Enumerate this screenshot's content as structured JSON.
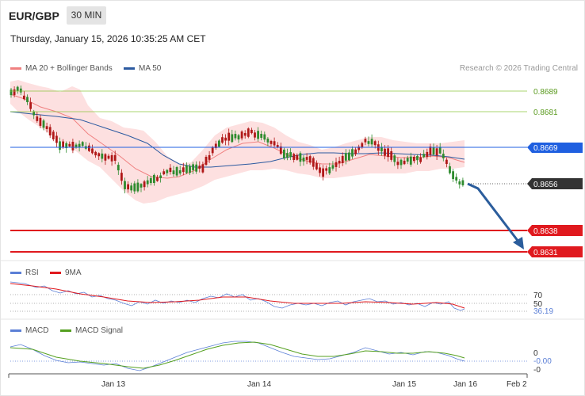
{
  "header": {
    "pair": "EUR/GBP",
    "timeframe": "30 MIN",
    "datetime": "Thursday, January 15, 2026 10:35:25 AM CET"
  },
  "price_panel": {
    "legend": [
      {
        "label": "MA 20 + Bollinger Bands",
        "color": "#f08080"
      },
      {
        "label": "MA 50",
        "color": "#2c5aa0"
      }
    ],
    "copyright": "Research © 2026 Trading Central",
    "levels": {
      "r2": "0.8689",
      "r1": "0.8681",
      "pivot": "0.8669",
      "last": "0.8656",
      "s1": "0.8638",
      "s2": "0.8631"
    },
    "colors": {
      "resistance": "#8cc63f",
      "pivot": "#1f5fe0",
      "support": "#e0191e",
      "last": "#333333",
      "arrow": "#2b5d9c"
    }
  },
  "rsi_panel": {
    "legend": [
      {
        "label": "RSI",
        "color": "#5b7fd6"
      },
      {
        "label": "9MA",
        "color": "#e0191e"
      }
    ],
    "levels": [
      "70",
      "50"
    ],
    "value": "36.19"
  },
  "macd_panel": {
    "legend": [
      {
        "label": "MACD",
        "color": "#5b7fd6"
      },
      {
        "label": "MACD Signal",
        "color": "#55a020"
      }
    ],
    "levels": [
      "0",
      "-0"
    ],
    "value": "-0.00"
  },
  "x_axis": [
    "Jan 13",
    "Jan 14",
    "Jan 15",
    "Jan 16",
    "Feb 2"
  ]
}
